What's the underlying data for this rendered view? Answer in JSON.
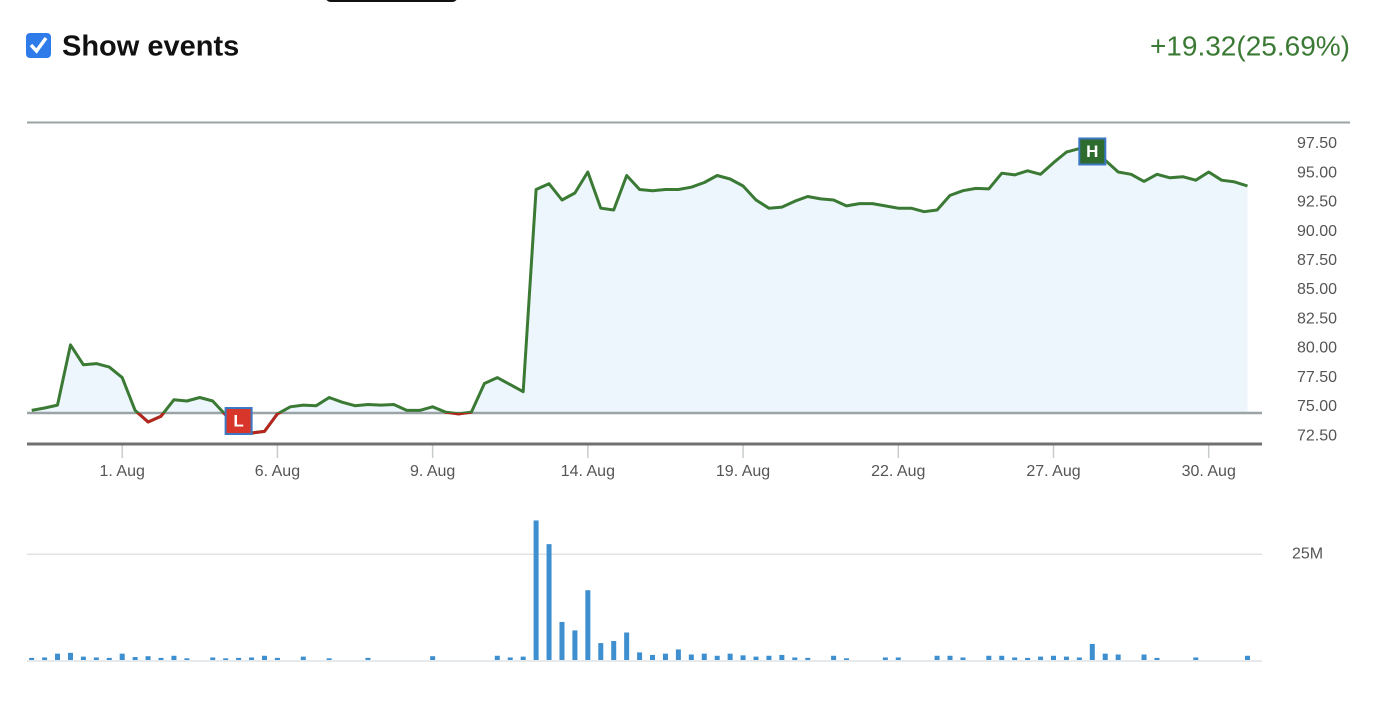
{
  "header": {
    "checkbox_label": "Show events",
    "change": "+19.32(25.69%)"
  },
  "chart_data": [
    {
      "type": "line",
      "x": [
        -1.75,
        -1.5,
        -1.25,
        -1,
        -0.75,
        -0.5,
        -0.25,
        0,
        0.25,
        0.5,
        0.75,
        1,
        1.25,
        1.5,
        1.75,
        2,
        2.25,
        2.5,
        2.75,
        3,
        3.25,
        3.5,
        3.75,
        4,
        4.25,
        4.5,
        4.75,
        5,
        5.25,
        5.5,
        5.75,
        6,
        6.25,
        6.5,
        6.75,
        7,
        7.25,
        7.5,
        7.75,
        8,
        8.25,
        8.5,
        8.75,
        9,
        9.25,
        9.5,
        9.75,
        10,
        10.25,
        10.5,
        10.75,
        11,
        11.25,
        11.5,
        11.75,
        12,
        12.25,
        12.5,
        12.75,
        13,
        13.25,
        13.5,
        13.75,
        14,
        14.25,
        14.5,
        14.75,
        15,
        15.25,
        15.5,
        15.75,
        16,
        16.25,
        16.5,
        16.75,
        17,
        17.25,
        17.5,
        17.75,
        18,
        18.25,
        18.5,
        18.75,
        19,
        19.25,
        19.5,
        19.75,
        20,
        20.25,
        20.5,
        20.75,
        21,
        21.25,
        21.5,
        21.75
      ],
      "values": [
        74.7,
        74.9,
        75.15,
        80.3,
        78.6,
        78.7,
        78.4,
        77.5,
        74.7,
        73.7,
        74.2,
        75.6,
        75.5,
        75.8,
        75.5,
        74.3,
        72.76,
        72.76,
        72.9,
        74.4,
        75.0,
        75.15,
        75.1,
        75.8,
        75.4,
        75.1,
        75.2,
        75.15,
        75.2,
        74.7,
        74.7,
        75.0,
        74.55,
        74.4,
        74.55,
        77.0,
        77.5,
        76.9,
        76.3,
        93.6,
        94.1,
        92.7,
        93.3,
        95.1,
        92.0,
        91.85,
        94.8,
        93.6,
        93.5,
        93.6,
        93.6,
        93.8,
        94.2,
        94.8,
        94.5,
        93.9,
        92.7,
        92.0,
        92.1,
        92.6,
        93.0,
        92.8,
        92.7,
        92.2,
        92.4,
        92.4,
        92.2,
        92.0,
        92.0,
        91.7,
        91.85,
        93.1,
        93.5,
        93.7,
        93.65,
        95.0,
        94.85,
        95.2,
        94.9,
        95.9,
        96.8,
        97.1,
        97.2,
        96.1,
        95.1,
        94.9,
        94.3,
        94.9,
        94.6,
        94.7,
        94.4,
        95.1,
        94.4,
        94.25,
        93.9
      ],
      "color": "#3b7a35",
      "below_color": "#b5261f",
      "fill": "#eef6fd",
      "baseline": 74.47,
      "low_label": "L",
      "high_label": "H",
      "xlim": [
        -1.84,
        22.03
      ],
      "xticks": [
        {
          "value": 0,
          "label": "1. Aug"
        },
        {
          "value": 3,
          "label": "6. Aug"
        },
        {
          "value": 6,
          "label": "9. Aug"
        },
        {
          "value": 9,
          "label": "14. Aug"
        },
        {
          "value": 12,
          "label": "19. Aug"
        },
        {
          "value": 15,
          "label": "22. Aug"
        },
        {
          "value": 18,
          "label": "27. Aug"
        },
        {
          "value": 21,
          "label": "30. Aug"
        }
      ],
      "ylim": [
        71.82,
        99.38
      ],
      "yticks": [
        {
          "value": 72.5,
          "label": "72.50"
        },
        {
          "value": 75,
          "label": "75.00"
        },
        {
          "value": 77.5,
          "label": "77.50"
        },
        {
          "value": 80,
          "label": "80.00"
        },
        {
          "value": 82.5,
          "label": "82.50"
        },
        {
          "value": 85,
          "label": "85.00"
        },
        {
          "value": 87.5,
          "label": "87.50"
        },
        {
          "value": 90,
          "label": "90.00"
        },
        {
          "value": 92.5,
          "label": "92.50"
        },
        {
          "value": 95,
          "label": "95.00"
        },
        {
          "value": 97.5,
          "label": "97.50"
        }
      ]
    },
    {
      "type": "bar",
      "x": [
        -1.75,
        -1.5,
        -1.25,
        -1,
        -0.75,
        -0.5,
        -0.25,
        0,
        0.25,
        0.5,
        0.75,
        1,
        1.25,
        1.5,
        1.75,
        2,
        2.25,
        2.5,
        2.75,
        3,
        3.25,
        3.5,
        3.75,
        4,
        4.25,
        4.5,
        4.75,
        5,
        5.25,
        5.5,
        5.75,
        6,
        6.25,
        6.5,
        6.75,
        7,
        7.25,
        7.5,
        7.75,
        8,
        8.25,
        8.5,
        8.75,
        9,
        9.25,
        9.5,
        9.75,
        10,
        10.25,
        10.5,
        10.75,
        11,
        11.25,
        11.5,
        11.75,
        12,
        12.25,
        12.5,
        12.75,
        13,
        13.25,
        13.5,
        13.75,
        14,
        14.25,
        14.5,
        14.75,
        15,
        15.25,
        15.5,
        15.75,
        16,
        16.25,
        16.5,
        16.75,
        17,
        17.25,
        17.5,
        17.75,
        18,
        18.25,
        18.5,
        18.75,
        19,
        19.25,
        19.5,
        19.75,
        20,
        20.25,
        20.5,
        20.75,
        21,
        21.25,
        21.5,
        21.75
      ],
      "values": [
        0.5,
        0.6,
        1.5,
        1.7,
        0.8,
        0.6,
        0.5,
        1.5,
        0.7,
        0.9,
        0.5,
        1.0,
        0.4,
        0,
        0.6,
        0.4,
        0.5,
        0.6,
        1.0,
        0.5,
        0,
        0.8,
        0,
        0.4,
        0,
        0,
        0.5,
        0,
        0,
        0,
        0,
        0.9,
        0,
        0,
        0,
        0,
        1.0,
        0.6,
        0.8,
        33,
        27.4,
        9,
        7,
        16.5,
        4,
        4.5,
        6.5,
        1.8,
        1.2,
        1.5,
        2.5,
        1.3,
        1.5,
        1.0,
        1.5,
        1.1,
        0.8,
        1.0,
        1.2,
        0.6,
        0.5,
        0,
        1.0,
        0.4,
        0,
        0,
        0.6,
        0.6,
        0,
        0,
        1.0,
        1.0,
        0.6,
        0,
        1.0,
        1.0,
        0.6,
        0.5,
        0.8,
        1.0,
        0.8,
        0.6,
        3.8,
        1.5,
        1.3,
        0,
        1.3,
        0.5,
        0,
        0,
        0.6,
        0,
        0,
        0,
        1.0
      ],
      "color": "#3d8fcf",
      "xlim": [
        -1.84,
        22.03
      ],
      "ylim": [
        0,
        35
      ],
      "yticks": [
        {
          "value": 25,
          "label": "25M"
        }
      ]
    }
  ]
}
